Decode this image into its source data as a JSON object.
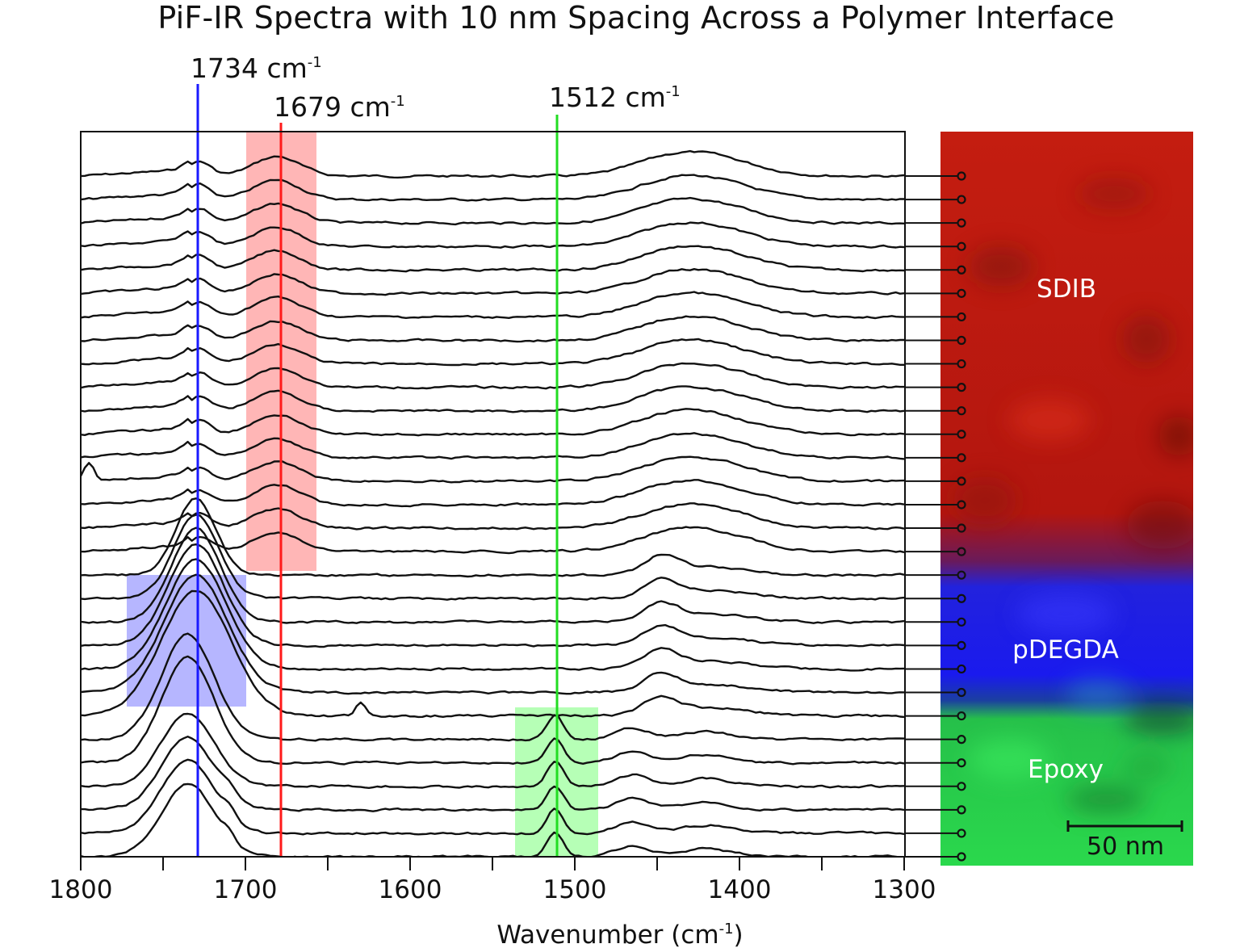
{
  "title": "PiF-IR Spectra with 10 nm Spacing Across a Polymer Interface",
  "chart_data": {
    "type": "line",
    "title": "PiF-IR Spectra with 10 nm Spacing Across a Polymer Interface",
    "xlabel": "Wavenumber (cm⁻¹)",
    "ylabel": "",
    "xlim": [
      1800,
      1300
    ],
    "x_reversed": true,
    "x_ticks": [
      1800,
      1700,
      1600,
      1500,
      1400,
      1300
    ],
    "x_minor_ticks": [
      1750,
      1650,
      1550,
      1450,
      1350
    ],
    "grid": false,
    "legend": null,
    "n_spectra": 30,
    "spacing_nm": 10,
    "offset_stacked": true,
    "reference_lines": [
      {
        "wavenumber": 1734,
        "label": "1734 cm⁻¹",
        "color": "#1a1aff"
      },
      {
        "wavenumber": 1679,
        "label": "1679 cm⁻¹",
        "color": "#ff1a1a"
      },
      {
        "wavenumber": 1512,
        "label": "1512 cm⁻¹",
        "color": "#22dd22"
      }
    ],
    "highlight_regions": [
      {
        "name": "SDIB band",
        "x_range": [
          1700,
          1657
        ],
        "spectra_range": [
          1,
          18
        ],
        "color": "#ff9a9a"
      },
      {
        "name": "pDEGDA band",
        "x_range": [
          1772,
          1700
        ],
        "spectra_range": [
          19,
          24
        ],
        "color": "#9a9aff"
      },
      {
        "name": "Epoxy band",
        "x_range": [
          1535,
          1485
        ],
        "spectra_range": [
          25,
          30
        ],
        "color": "#9aff9a"
      }
    ],
    "series_regions": [
      {
        "layer": "SDIB",
        "spectra": [
          1,
          17
        ],
        "features": "weak peak ~1728, broad peak ~1679, broad band ~1420"
      },
      {
        "layer": "pDEGDA",
        "spectra": [
          18,
          24
        ],
        "features": "strong peak ~1730, peak ~1448"
      },
      {
        "layer": "Epoxy",
        "spectra": [
          25,
          30
        ],
        "features": "sharp peak ~1512, broad peak ~1734, peak ~1460"
      }
    ]
  },
  "map": {
    "layers": [
      {
        "label": "SDIB",
        "color": "#c41d10"
      },
      {
        "label": "pDEGDA",
        "color": "#1a1aee"
      },
      {
        "label": "Epoxy",
        "color": "#27d54a"
      }
    ],
    "scale_bar": "50 nm"
  },
  "labels": {
    "ref1": "1734 cm",
    "ref2": "1679 cm",
    "ref3": "1512 cm",
    "sup": "-1",
    "tick_1800": "1800",
    "tick_1700": "1700",
    "tick_1600": "1600",
    "tick_1500": "1500",
    "tick_1400": "1400",
    "tick_1300": "1300",
    "xlabel_main": "Wavenumber (cm",
    "xlabel_sup": "-1",
    "xlabel_end": ")",
    "sdib": "SDIB",
    "pdegda": "pDEGDA",
    "epoxy": "Epoxy",
    "scale": "50 nm"
  }
}
